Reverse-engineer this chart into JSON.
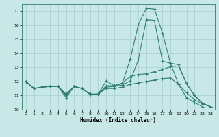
{
  "title": "",
  "xlabel": "Humidex (Indice chaleur)",
  "xlim": [
    -0.5,
    23.5
  ],
  "ylim": [
    10,
    17.5
  ],
  "yticks": [
    10,
    11,
    12,
    13,
    14,
    15,
    16,
    17
  ],
  "xticks": [
    0,
    1,
    2,
    3,
    4,
    5,
    6,
    7,
    8,
    9,
    10,
    11,
    12,
    13,
    14,
    15,
    16,
    17,
    18,
    19,
    20,
    21,
    22,
    23
  ],
  "line_color": "#2e7d6e",
  "bg_color": "#c8e8e8",
  "grid_color": "#a8cece",
  "lines": [
    {
      "x": [
        0,
        1,
        2,
        3,
        4,
        5,
        6,
        7,
        8,
        9,
        10,
        11,
        12,
        13,
        14,
        15,
        16,
        17,
        18,
        19,
        20,
        21,
        22,
        23
      ],
      "y": [
        12.0,
        11.5,
        11.6,
        11.65,
        11.65,
        10.85,
        11.65,
        11.5,
        11.1,
        11.1,
        12.05,
        11.7,
        11.85,
        13.6,
        16.05,
        17.2,
        17.15,
        15.45,
        13.3,
        13.2,
        11.85,
        11.0,
        10.45,
        10.2
      ]
    },
    {
      "x": [
        0,
        1,
        2,
        3,
        4,
        5,
        6,
        7,
        8,
        9,
        10,
        11,
        12,
        13,
        14,
        15,
        16,
        17,
        18,
        19,
        20,
        21,
        22,
        23
      ],
      "y": [
        12.0,
        11.5,
        11.6,
        11.65,
        11.65,
        11.0,
        11.65,
        11.5,
        11.1,
        11.1,
        11.7,
        11.7,
        11.9,
        12.35,
        12.5,
        12.55,
        12.7,
        12.85,
        13.05,
        13.1,
        11.85,
        11.0,
        10.45,
        10.2
      ]
    },
    {
      "x": [
        0,
        1,
        2,
        3,
        4,
        5,
        6,
        7,
        8,
        9,
        10,
        11,
        12,
        13,
        14,
        15,
        16,
        17,
        18,
        19,
        20,
        21,
        22,
        23
      ],
      "y": [
        12.0,
        11.5,
        11.6,
        11.65,
        11.65,
        11.1,
        11.65,
        11.5,
        11.05,
        11.1,
        11.5,
        11.5,
        11.6,
        11.8,
        11.9,
        12.0,
        12.1,
        12.2,
        12.25,
        11.8,
        11.2,
        10.7,
        10.4,
        10.2
      ]
    },
    {
      "x": [
        0,
        1,
        2,
        3,
        4,
        5,
        6,
        7,
        8,
        9,
        10,
        11,
        12,
        13,
        14,
        15,
        16,
        17,
        18,
        19,
        20,
        21,
        22
      ],
      "y": [
        12.0,
        11.5,
        11.6,
        11.65,
        11.65,
        11.05,
        11.65,
        11.5,
        11.1,
        11.1,
        11.6,
        11.65,
        11.75,
        12.05,
        13.55,
        16.4,
        16.35,
        13.45,
        13.3,
        11.8,
        10.85,
        10.5,
        10.2
      ]
    }
  ]
}
